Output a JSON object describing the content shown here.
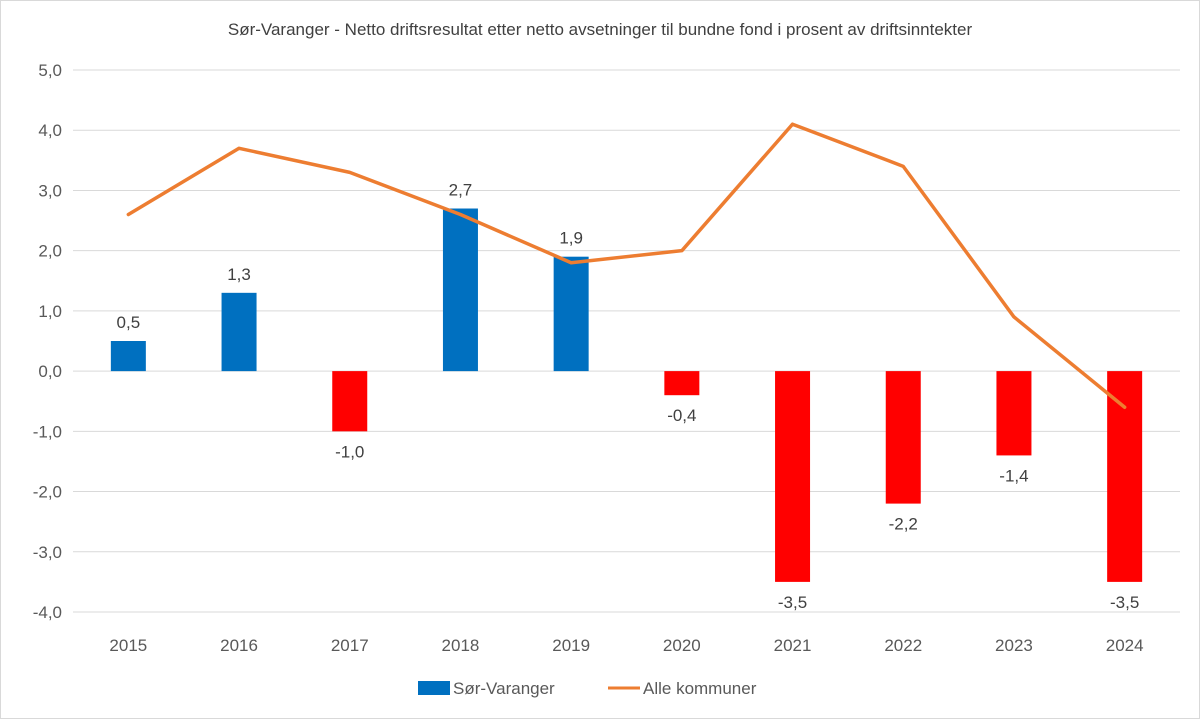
{
  "chart_data": {
    "type": "bar",
    "title": "Sør-Varanger - Netto driftsresultat etter netto avsetninger til bundne fond i prosent av driftsinntekter",
    "xlabel": "",
    "ylabel": "",
    "categories": [
      "2015",
      "2016",
      "2017",
      "2018",
      "2019",
      "2020",
      "2021",
      "2022",
      "2023",
      "2024"
    ],
    "ylim": [
      -4.0,
      5.0
    ],
    "yticks": [
      5.0,
      4.0,
      3.0,
      2.0,
      1.0,
      0.0,
      -1.0,
      -2.0,
      -3.0,
      -4.0
    ],
    "ytick_labels": [
      "5,0",
      "4,0",
      "3,0",
      "2,0",
      "1,0",
      "0,0",
      "-1,0",
      "-2,0",
      "-3,0",
      "-4,0"
    ],
    "grid": true,
    "legend_position": "bottom",
    "series": [
      {
        "name": "Sør-Varanger",
        "type": "bar",
        "color": "#0070C0",
        "negative_color": "#FF0000",
        "values": [
          0.5,
          1.3,
          -1.0,
          2.7,
          1.9,
          -0.4,
          -3.5,
          -2.2,
          -1.4,
          -3.5
        ],
        "data_labels": [
          "0,5",
          "1,3",
          "-1,0",
          "2,7",
          "1,9",
          "-0,4",
          "-3,5",
          "-2,2",
          "-1,4",
          "-3,5"
        ]
      },
      {
        "name": "Alle kommuner",
        "type": "line",
        "color": "#ED7D31",
        "values": [
          2.6,
          3.7,
          3.3,
          2.6,
          1.8,
          2.0,
          4.1,
          3.4,
          0.9,
          -0.6
        ]
      }
    ]
  }
}
